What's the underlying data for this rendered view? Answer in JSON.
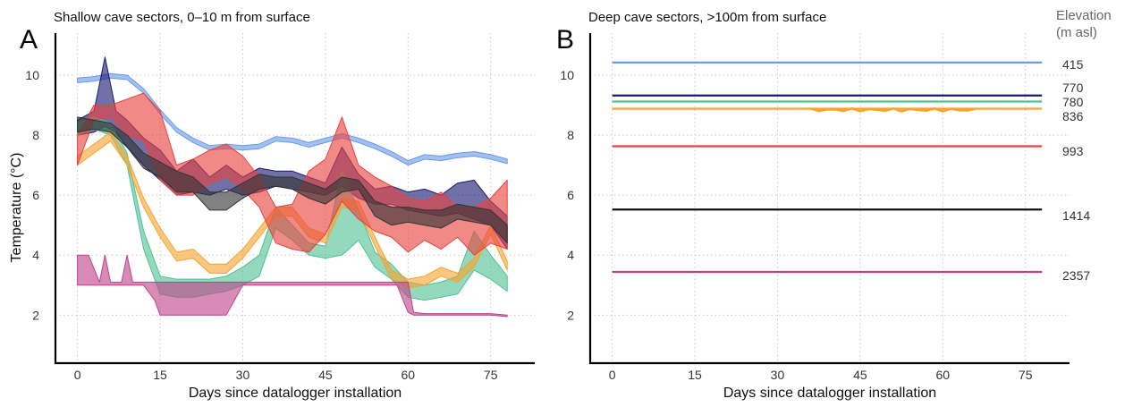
{
  "figure": {
    "elevation_header": [
      "Elevation",
      "(m asl)"
    ]
  },
  "chart_data": [
    {
      "type": "area",
      "panel_letter": "A",
      "title": "Shallow cave sectors, 0–10 m from surface",
      "xlabel": "Days since datalogger installation",
      "ylabel": "Temperature (°C)",
      "xlim": [
        -4,
        83
      ],
      "ylim": [
        0.4,
        11.4
      ],
      "xticks": [
        0,
        15,
        30,
        45,
        60,
        75
      ],
      "yticks": [
        2,
        4,
        6,
        8,
        10
      ],
      "grid": true,
      "series": [
        {
          "elevation": "415",
          "color": "#6a9be6",
          "x": [
            0,
            3,
            6,
            9,
            12,
            15,
            18,
            21,
            24,
            27,
            30,
            33,
            36,
            39,
            42,
            45,
            48,
            51,
            54,
            57,
            60,
            63,
            66,
            69,
            72,
            75,
            78
          ],
          "lo": [
            9.75,
            9.8,
            9.9,
            9.85,
            9.4,
            8.7,
            8.1,
            7.75,
            7.5,
            7.55,
            7.5,
            7.55,
            7.8,
            7.75,
            7.6,
            7.75,
            7.9,
            7.75,
            7.55,
            7.3,
            7.0,
            7.2,
            7.15,
            7.25,
            7.3,
            7.2,
            7.05
          ],
          "hi": [
            9.9,
            9.95,
            10.05,
            10.0,
            9.55,
            8.85,
            8.25,
            7.9,
            7.65,
            7.7,
            7.65,
            7.7,
            7.95,
            7.9,
            7.75,
            7.9,
            8.05,
            7.9,
            7.7,
            7.45,
            7.15,
            7.35,
            7.3,
            7.4,
            7.45,
            7.35,
            7.2
          ]
        },
        {
          "elevation": "770",
          "color": "#1a1a72",
          "x": [
            0,
            3,
            5,
            7,
            9,
            12,
            15,
            18,
            21,
            24,
            27,
            30,
            33,
            36,
            39,
            42,
            45,
            48,
            51,
            54,
            57,
            60,
            63,
            66,
            69,
            72,
            75,
            78
          ],
          "lo": [
            8.0,
            8.1,
            8.3,
            8.1,
            7.6,
            7.0,
            6.5,
            6.0,
            6.1,
            6.0,
            6.2,
            6.0,
            6.1,
            6.3,
            6.2,
            6.1,
            6.0,
            6.3,
            5.9,
            5.7,
            5.7,
            5.5,
            5.4,
            5.3,
            5.4,
            5.2,
            5.0,
            4.2
          ],
          "hi": [
            8.5,
            8.8,
            10.6,
            8.8,
            8.5,
            7.9,
            7.5,
            6.8,
            7.2,
            6.6,
            7.0,
            6.6,
            6.9,
            6.8,
            6.8,
            6.6,
            6.4,
            7.6,
            6.7,
            6.2,
            6.3,
            6.1,
            6.2,
            6.0,
            6.4,
            6.5,
            5.8,
            5.3
          ]
        },
        {
          "elevation": "780",
          "color": "#4fc195",
          "x": [
            0,
            3,
            6,
            9,
            12,
            15,
            18,
            21,
            24,
            27,
            30,
            33,
            36,
            39,
            42,
            45,
            48,
            51,
            54,
            57,
            60,
            63,
            66,
            69,
            72,
            75,
            78
          ],
          "lo": [
            8.0,
            8.2,
            8.0,
            7.0,
            4.2,
            2.7,
            2.6,
            2.6,
            2.7,
            2.8,
            3.0,
            3.3,
            4.9,
            4.5,
            4.0,
            3.9,
            4.0,
            4.5,
            3.6,
            3.2,
            2.6,
            2.5,
            2.6,
            2.7,
            3.5,
            3.2,
            2.8
          ],
          "hi": [
            8.4,
            8.6,
            8.4,
            7.4,
            4.8,
            3.3,
            3.2,
            3.2,
            3.2,
            3.3,
            3.6,
            4.0,
            5.6,
            5.0,
            4.4,
            4.3,
            6.8,
            5.5,
            4.1,
            3.7,
            3.1,
            3.0,
            3.1,
            3.3,
            4.8,
            4.0,
            3.3
          ]
        },
        {
          "elevation": "836",
          "color": "#f5a432",
          "x": [
            0,
            3,
            6,
            9,
            12,
            15,
            18,
            21,
            24,
            27,
            30,
            33,
            36,
            39,
            42,
            45,
            48,
            51,
            54,
            57,
            60,
            63,
            66,
            69,
            72,
            75,
            78
          ],
          "lo": [
            7.0,
            7.4,
            7.8,
            7.0,
            5.6,
            4.6,
            3.8,
            3.9,
            3.4,
            3.4,
            3.9,
            4.6,
            5.3,
            5.3,
            4.6,
            4.4,
            5.6,
            5.5,
            4.3,
            3.2,
            2.9,
            3.0,
            3.3,
            3.1,
            3.6,
            4.7,
            3.5
          ],
          "hi": [
            7.3,
            7.7,
            8.1,
            7.3,
            5.9,
            4.9,
            4.1,
            4.2,
            3.7,
            3.7,
            4.2,
            4.9,
            5.6,
            5.6,
            4.9,
            4.7,
            5.9,
            5.8,
            4.6,
            3.5,
            3.2,
            3.3,
            3.6,
            3.4,
            3.9,
            5.0,
            3.8
          ]
        },
        {
          "elevation": "993",
          "color": "#e8423e",
          "x": [
            0,
            3,
            6,
            9,
            12,
            15,
            18,
            21,
            24,
            27,
            30,
            33,
            36,
            39,
            42,
            45,
            48,
            51,
            54,
            57,
            60,
            63,
            66,
            69,
            72,
            75,
            78
          ],
          "lo": [
            7.0,
            8.5,
            8.6,
            8.0,
            7.8,
            6.5,
            6.0,
            6.0,
            6.4,
            6.6,
            6.2,
            5.6,
            4.4,
            4.2,
            4.1,
            4.7,
            5.8,
            5.2,
            4.8,
            4.6,
            4.1,
            4.5,
            4.2,
            4.6,
            4.0,
            4.4,
            4.2
          ],
          "hi": [
            8.0,
            9.0,
            9.0,
            9.2,
            9.4,
            8.8,
            7.0,
            7.2,
            7.5,
            7.7,
            7.3,
            6.6,
            5.6,
            5.7,
            6.8,
            7.2,
            8.6,
            7.0,
            6.6,
            6.3,
            5.9,
            5.8,
            6.1,
            5.6,
            5.6,
            5.9,
            6.5
          ]
        },
        {
          "elevation": "1414",
          "color": "#333333",
          "x": [
            0,
            3,
            6,
            9,
            12,
            15,
            18,
            21,
            24,
            27,
            30,
            33,
            36,
            39,
            42,
            45,
            48,
            51,
            54,
            57,
            60,
            63,
            66,
            69,
            72,
            75,
            78
          ],
          "lo": [
            8.1,
            8.2,
            8.1,
            7.6,
            6.9,
            6.6,
            6.1,
            6.1,
            5.5,
            5.5,
            5.9,
            6.2,
            6.3,
            6.2,
            5.9,
            5.7,
            6.1,
            6.2,
            5.3,
            5.0,
            5.1,
            5.0,
            4.9,
            5.2,
            5.1,
            5.0,
            4.4
          ],
          "hi": [
            8.6,
            8.5,
            8.4,
            8.0,
            7.4,
            7.1,
            6.8,
            6.6,
            6.1,
            6.1,
            6.4,
            6.7,
            6.6,
            6.6,
            6.4,
            6.2,
            6.6,
            6.5,
            5.8,
            5.6,
            5.6,
            5.5,
            5.5,
            5.7,
            5.6,
            5.5,
            5.0
          ]
        },
        {
          "elevation": "2357",
          "color": "#c0438a",
          "x": [
            0,
            2,
            4,
            5,
            6,
            8,
            9,
            10,
            12,
            14,
            15,
            17,
            19,
            21,
            23,
            25,
            27,
            30,
            35,
            40,
            45,
            50,
            55,
            58,
            60,
            61,
            63,
            66,
            70,
            75,
            78
          ],
          "lo": [
            3.0,
            3.0,
            3.0,
            3.0,
            3.0,
            3.0,
            3.0,
            3.0,
            3.0,
            2.5,
            2.0,
            2.0,
            2.0,
            2.0,
            2.0,
            2.0,
            2.0,
            3.0,
            3.0,
            3.0,
            3.0,
            3.0,
            3.0,
            3.0,
            2.1,
            2.0,
            2.0,
            2.0,
            2.0,
            2.0,
            1.95
          ],
          "hi": [
            4.0,
            4.0,
            3.1,
            4.0,
            3.1,
            3.1,
            4.0,
            3.1,
            3.1,
            3.1,
            3.1,
            3.1,
            3.1,
            3.1,
            3.1,
            3.1,
            3.1,
            3.1,
            3.1,
            3.1,
            3.1,
            3.1,
            3.1,
            3.1,
            3.1,
            2.1,
            2.05,
            2.05,
            2.05,
            2.05,
            2.0
          ]
        }
      ]
    },
    {
      "type": "line",
      "panel_letter": "B",
      "title": "Deep cave sectors, >100m from surface",
      "xlabel": "Days since datalogger installation",
      "ylabel": "",
      "xlim": [
        -4,
        83
      ],
      "ylim": [
        0.4,
        11.4
      ],
      "xticks": [
        0,
        15,
        30,
        45,
        60,
        75
      ],
      "yticks": [
        2,
        4,
        6,
        8,
        10
      ],
      "grid": true,
      "series": [
        {
          "elevation": "415",
          "color": "#6a9be6",
          "value": 10.42
        },
        {
          "elevation": "770",
          "color": "#1a1a72",
          "value": 9.32
        },
        {
          "elevation": "780",
          "color": "#4fc195",
          "value": 9.12
        },
        {
          "elevation": "836",
          "color": "#f5a432",
          "value": 8.88
        },
        {
          "elevation": "993",
          "color": "#e8423e",
          "value": 7.63
        },
        {
          "elevation": "1414",
          "color": "#111111",
          "value": 5.52
        },
        {
          "elevation": "2357",
          "color": "#c0438a",
          "value": 3.44
        }
      ]
    }
  ]
}
